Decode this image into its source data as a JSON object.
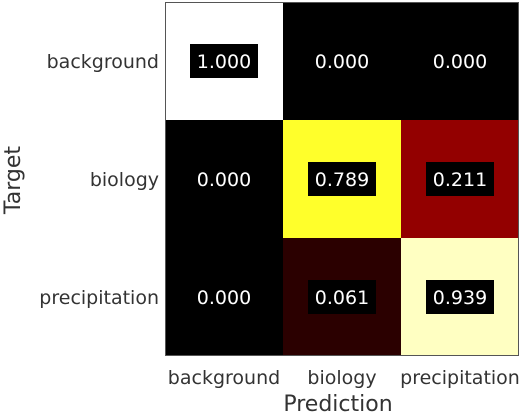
{
  "chart_data": {
    "type": "heatmap",
    "title": "",
    "xlabel": "Prediction",
    "ylabel": "Target",
    "x_categories": [
      "background",
      "biology",
      "precipitation"
    ],
    "y_categories": [
      "background",
      "biology",
      "precipitation"
    ],
    "values": [
      [
        1.0,
        0.0,
        0.0
      ],
      [
        0.0,
        0.789,
        0.211
      ],
      [
        0.0,
        0.061,
        0.939
      ]
    ],
    "value_labels": [
      [
        "1.000",
        "0.000",
        "0.000"
      ],
      [
        "0.000",
        "0.789",
        "0.211"
      ],
      [
        "0.000",
        "0.061",
        "0.939"
      ]
    ],
    "colormap": "hot",
    "value_range": [
      0,
      1
    ],
    "colorbar": false,
    "grid": false
  }
}
